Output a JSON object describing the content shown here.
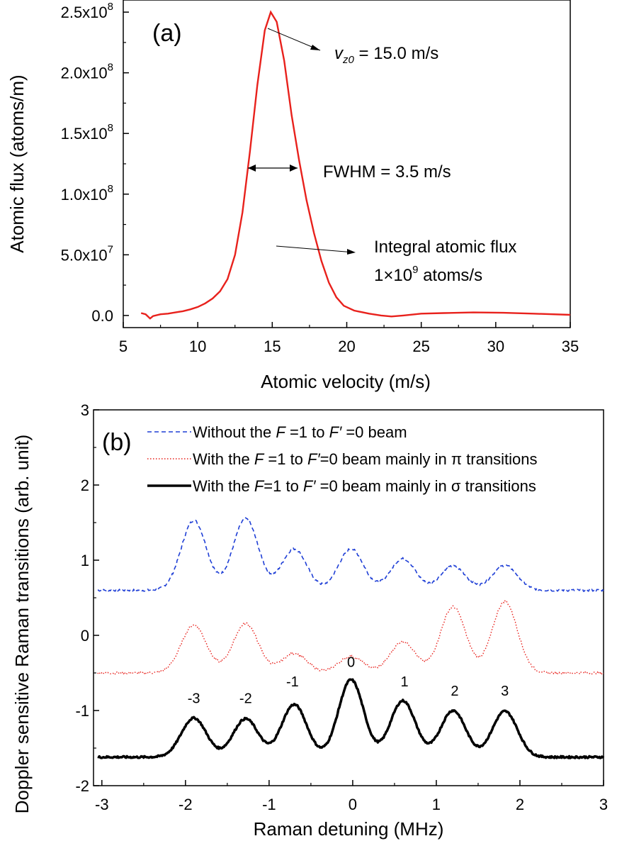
{
  "chart_data": [
    {
      "id": "a",
      "type": "line",
      "panel_label": "(a)",
      "xlabel": "Atomic velocity (m/s)",
      "ylabel": "Atomic flux (atoms/m)",
      "xlim": [
        5,
        35
      ],
      "ylim": [
        -10000000.0,
        260000000.0
      ],
      "xticks": [
        {
          "v": 5,
          "label": "5"
        },
        {
          "v": 10,
          "label": "10"
        },
        {
          "v": 15,
          "label": "15"
        },
        {
          "v": 20,
          "label": "20"
        },
        {
          "v": 25,
          "label": "25"
        },
        {
          "v": 30,
          "label": "30"
        },
        {
          "v": 35,
          "label": "35"
        }
      ],
      "yticks": [
        {
          "v": 0,
          "mant": "0.0",
          "exp": ""
        },
        {
          "v": 50000000.0,
          "mant": "5.0x10",
          "exp": "7"
        },
        {
          "v": 100000000.0,
          "mant": "1.0x10",
          "exp": "8"
        },
        {
          "v": 150000000.0,
          "mant": "1.5x10",
          "exp": "8"
        },
        {
          "v": 200000000.0,
          "mant": "2.0x10",
          "exp": "8"
        },
        {
          "v": 250000000.0,
          "mant": "2.5x10",
          "exp": "8"
        }
      ],
      "series": [
        {
          "color": "#e8211c",
          "points": [
            [
              6.2,
              2000000.0
            ],
            [
              6.5,
              1000000.0
            ],
            [
              6.8,
              -2500000.0
            ],
            [
              7.0,
              -500000.0
            ],
            [
              7.5,
              1000000.0
            ],
            [
              8.0,
              1500000.0
            ],
            [
              8.5,
              2500000.0
            ],
            [
              9.0,
              3500000.0
            ],
            [
              9.5,
              5000000.0
            ],
            [
              10.0,
              7000000.0
            ],
            [
              10.5,
              10000000.0
            ],
            [
              11.0,
              14000000.0
            ],
            [
              11.5,
              20000000.0
            ],
            [
              12.0,
              30000000.0
            ],
            [
              12.5,
              50000000.0
            ],
            [
              13.0,
              85000000.0
            ],
            [
              13.5,
              135000000.0
            ],
            [
              14.0,
              190000000.0
            ],
            [
              14.5,
              235000000.0
            ],
            [
              14.9,
              250000000.0
            ],
            [
              15.3,
              242000000.0
            ],
            [
              15.8,
              210000000.0
            ],
            [
              16.3,
              165000000.0
            ],
            [
              16.8,
              128000000.0
            ],
            [
              17.3,
              95000000.0
            ],
            [
              17.8,
              68000000.0
            ],
            [
              18.3,
              45000000.0
            ],
            [
              18.8,
              27000000.0
            ],
            [
              19.3,
              15000000.0
            ],
            [
              19.8,
              8000000.0
            ],
            [
              20.5,
              4000000.0
            ],
            [
              21.5,
              1500000.0
            ],
            [
              22.3,
              0.0
            ],
            [
              23.0,
              -800000.0
            ],
            [
              23.8,
              0.0
            ],
            [
              25.0,
              1500000.0
            ],
            [
              26.5,
              2000000.0
            ],
            [
              28.5,
              2500000.0
            ],
            [
              30.5,
              2200000.0
            ],
            [
              32.5,
              1500000.0
            ],
            [
              35.0,
              500000.0
            ]
          ]
        }
      ],
      "annotations": {
        "peak_prefix": "v",
        "peak_subscript": "z0",
        "peak_value": " = 15.0 m/s",
        "fwhm": "FWHM = 3.5 m/s",
        "integral_line1": "Integral atomic flux",
        "integral_line2_prefix": "1×10",
        "integral_line2_exp": "9",
        "integral_line2_suffix": " atoms/s"
      }
    },
    {
      "id": "b",
      "type": "line",
      "panel_label": "(b)",
      "xlabel": "Raman detuning (MHz)",
      "ylabel": "Doppler sensitive Raman transitions (arb. unit)",
      "xlim": [
        -3.1,
        3.0
      ],
      "ylim": [
        -2,
        3
      ],
      "xticks": [
        {
          "v": -3,
          "label": "-3"
        },
        {
          "v": -2,
          "label": "-2"
        },
        {
          "v": -1,
          "label": "-1"
        },
        {
          "v": 0,
          "label": "0"
        },
        {
          "v": 1,
          "label": "1"
        },
        {
          "v": 2,
          "label": "2"
        },
        {
          "v": 3,
          "label": "3"
        }
      ],
      "yticks": [
        {
          "v": -2,
          "label": "-2"
        },
        {
          "v": -1,
          "label": "-1"
        },
        {
          "v": 0,
          "label": "0"
        },
        {
          "v": 1,
          "label": "1"
        },
        {
          "v": 2,
          "label": "2"
        },
        {
          "v": 3,
          "label": "3"
        }
      ],
      "peak_centers": [
        -1.9,
        -1.28,
        -0.7,
        -0.02,
        0.6,
        1.2,
        1.82
      ],
      "series": [
        {
          "name_prefix": "Without the ",
          "name_F": "F",
          "name_mid1": " =1 to ",
          "name_Fp": "F′",
          "name_mid2": " =0 beam",
          "name_suffix": "",
          "color": "#1f3fd6",
          "dash": "dashed",
          "width": 1.6,
          "baseline": 0.6,
          "amps": [
            0.93,
            0.95,
            0.55,
            0.55,
            0.42,
            0.32,
            0.33
          ]
        },
        {
          "name_prefix": "With the ",
          "name_F": "F",
          "name_mid1": " =1 to ",
          "name_Fp": "F′",
          "name_mid2": "=0 beam mainly in ",
          "name_suffix": "π transitions",
          "color": "#e8211c",
          "dash": "dotted",
          "width": 1.4,
          "baseline": -0.5,
          "amps": [
            0.64,
            0.66,
            0.26,
            0.22,
            0.42,
            0.88,
            0.95
          ]
        },
        {
          "name_prefix": "With the ",
          "name_F": "F",
          "name_mid1": "=1 to ",
          "name_Fp": "F′",
          "name_mid2": " =0 beam mainly in ",
          "name_suffix": "σ transitions",
          "color": "#000000",
          "dash": "solid",
          "width": 3.5,
          "baseline": -1.62,
          "amps": [
            0.52,
            0.51,
            0.7,
            1.03,
            0.75,
            0.62,
            0.61
          ]
        }
      ],
      "peak_labels": [
        {
          "x": -1.9,
          "y": -0.9,
          "text": "-3"
        },
        {
          "x": -1.28,
          "y": -0.9,
          "text": "-2"
        },
        {
          "x": -0.72,
          "y": -0.68,
          "text": "-1"
        },
        {
          "x": -0.02,
          "y": -0.42,
          "text": "0"
        },
        {
          "x": 0.62,
          "y": -0.68,
          "text": "1"
        },
        {
          "x": 1.22,
          "y": -0.8,
          "text": "2"
        },
        {
          "x": 1.82,
          "y": -0.8,
          "text": "3"
        }
      ]
    }
  ]
}
